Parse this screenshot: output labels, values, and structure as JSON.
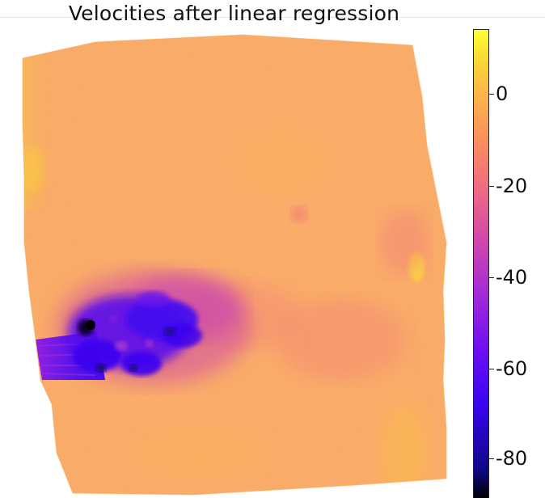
{
  "figure": {
    "title": "Velocities after linear regression"
  },
  "colorbar": {
    "colormap": "plasma",
    "ticks": [
      {
        "label": "0",
        "value": 0
      },
      {
        "label": "-20",
        "value": -20
      },
      {
        "label": "-40",
        "value": -40
      },
      {
        "label": "-60",
        "value": -60
      },
      {
        "label": "-80",
        "value": -80
      }
    ],
    "colors": {
      "high": "#ffff33",
      "mid_high": "#fcb44a",
      "mid": "#f06a82",
      "mid_low": "#a62bd6",
      "low": "#3a05f0",
      "min": "#000000"
    }
  }
}
